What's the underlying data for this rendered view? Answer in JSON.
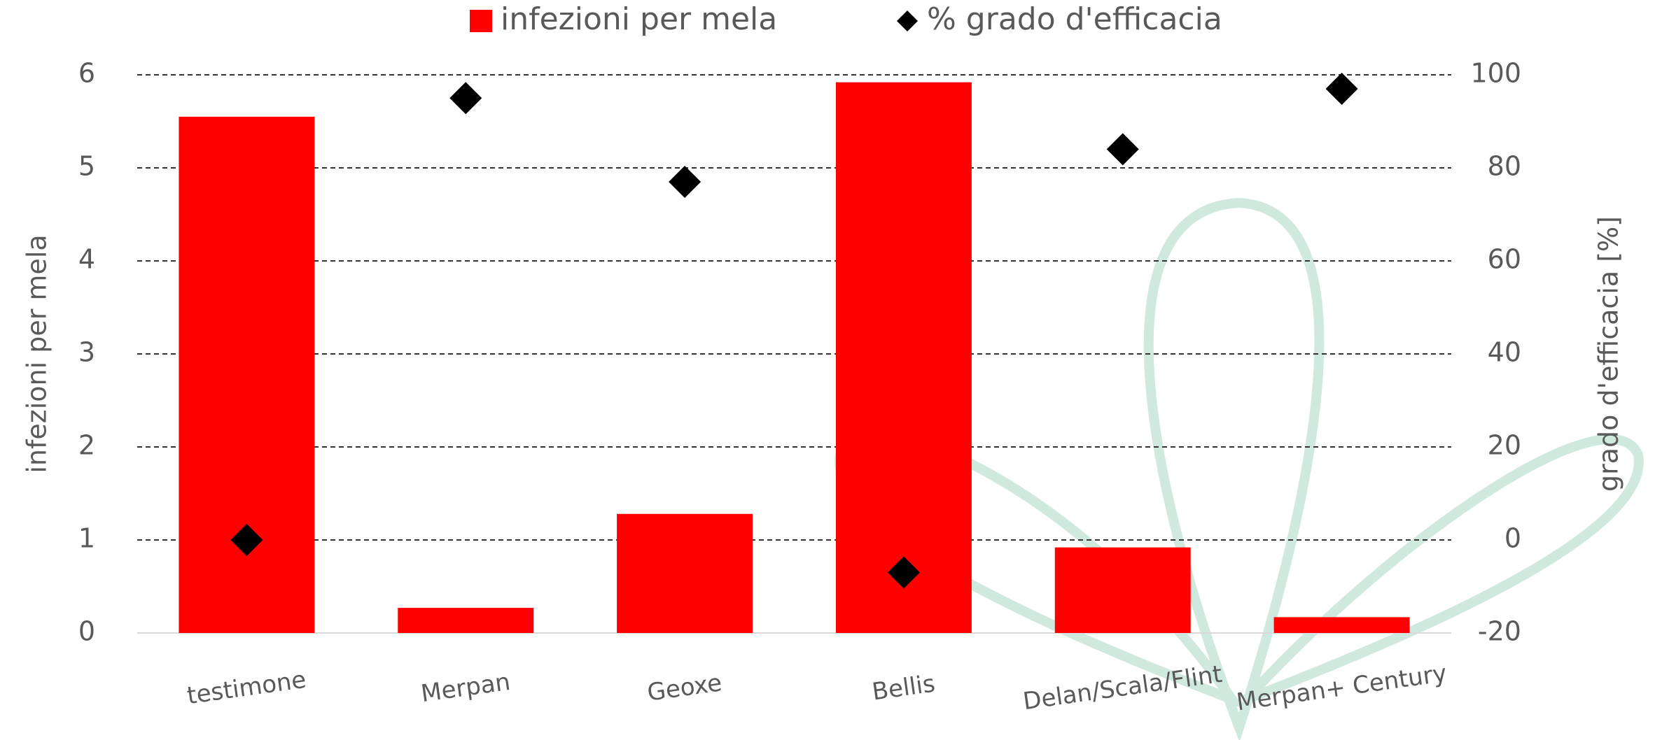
{
  "chart_data": {
    "type": "bar",
    "categories": [
      "testimone",
      "Merpan",
      "Geoxe",
      "Bellis",
      "Delan/Scala/Flint",
      "Merpan+ Century"
    ],
    "series": [
      {
        "name": "infezioni per mela",
        "type": "bar",
        "color": "#ff0000",
        "values": [
          5.55,
          0.27,
          1.28,
          5.92,
          0.92,
          0.17
        ]
      },
      {
        "name": "% grado d'efficacia",
        "type": "scatter",
        "axis": "y2",
        "color": "#000000",
        "values": [
          0,
          95,
          77,
          -7,
          84,
          97
        ]
      }
    ],
    "ylabel": "infezioni per mela",
    "y2label": "grado d'efficacia [%]",
    "ylim": [
      0,
      6
    ],
    "yticks": [
      0,
      1,
      2,
      3,
      4,
      5,
      6
    ],
    "y2lim": [
      -20,
      100
    ],
    "y2ticks": [
      -20,
      0,
      20,
      40,
      60,
      80,
      100
    ],
    "grid": true,
    "legend": "top"
  }
}
